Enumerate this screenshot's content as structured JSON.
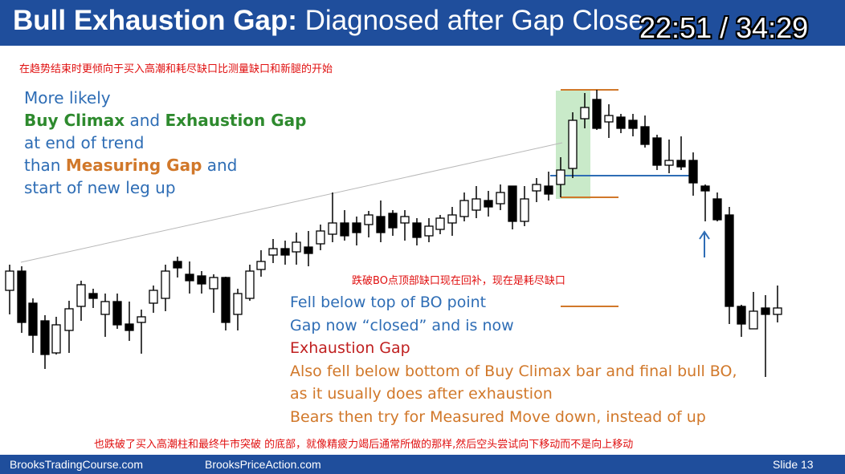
{
  "title": {
    "bold": "Bull Exhaustion Gap:",
    "rest": " Diagnosed after Gap Close"
  },
  "timer": "22:51 / 34:29",
  "cn_top": "在趋势结束时更倾向于买入高潮和耗尽缺口比测量缺口和新腿的开始",
  "cn_mid": "跌破BO点顶部缺口现在回补，现在是耗尽缺口",
  "cn_bottom": "也跌破了买入高潮柱和最终牛市突破 的底部，就像精疲力竭后通常所做的那样,然后空头尝试向下移动而不是向上移动",
  "left": {
    "l1": "More likely",
    "buy_climax": "Buy Climax",
    "and1": " and ",
    "exhaustion_gap": "Exhaustion Gap",
    "l3": "at end of trend",
    "than": "than ",
    "measuring_gap": "Measuring Gap",
    "and2": " and",
    "l5": "start of new leg up"
  },
  "mid": {
    "l1": "Fell below top of BO point",
    "l2": "Gap now “closed” and is now",
    "l3": "Exhaustion Gap",
    "l4": "Also fell below bottom of Buy Climax bar and final bull BO,",
    "l5": "as it usually does after exhaustion",
    "l6": "Bears then try for Measured Move down, instead of up"
  },
  "footer": {
    "left": "BrooksTradingCourse.com",
    "mid": "BrooksPriceAction.com",
    "right": "Slide  13"
  },
  "colors": {
    "header": "#1f4e9c",
    "blue_text": "#2e6db5",
    "green": "#2e8a2e",
    "orange": "#d1782a",
    "red": "#e01010"
  }
}
